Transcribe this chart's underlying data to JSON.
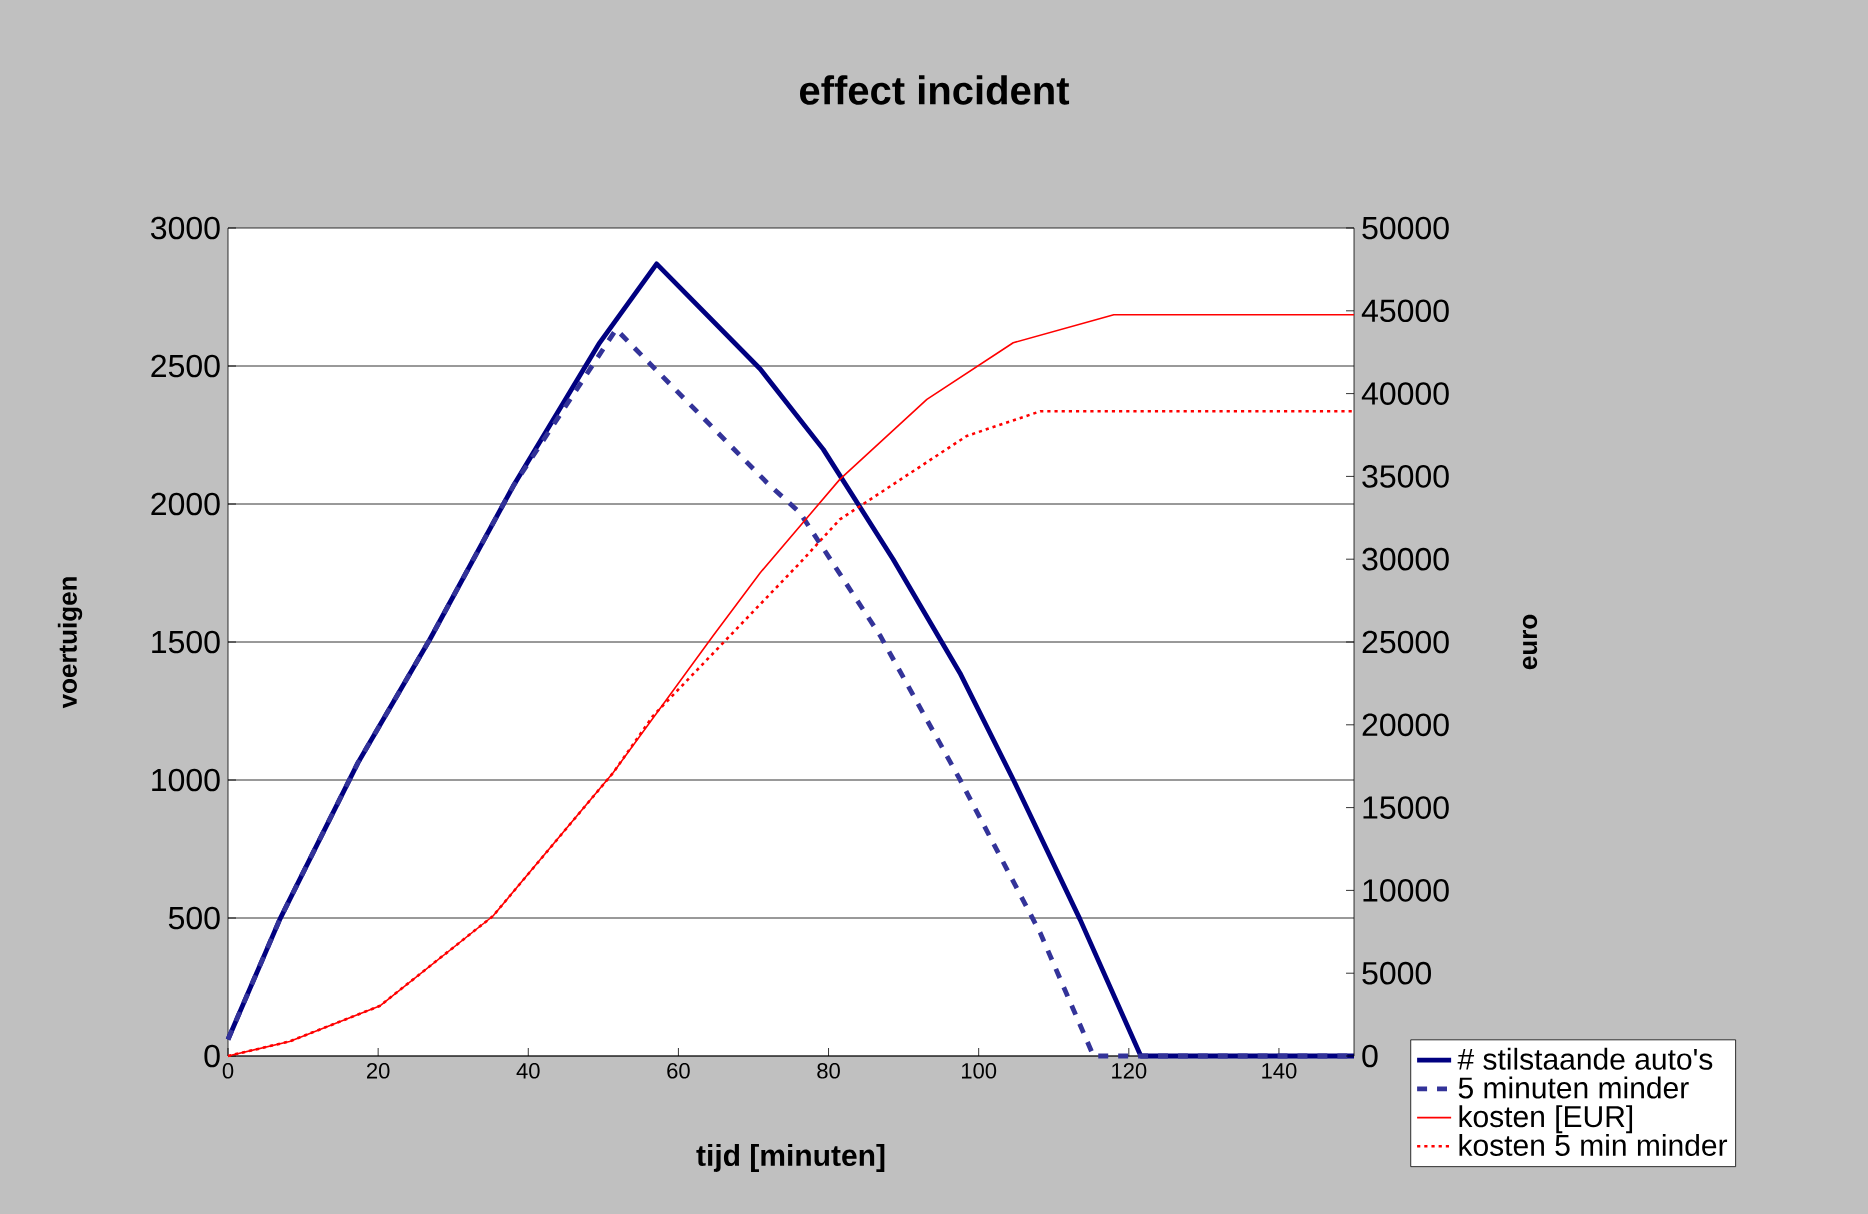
{
  "chart_data": {
    "type": "line",
    "title": "effect incident",
    "xlabel": "tijd [minuten]",
    "ylabel": "voertuigen",
    "y2label": "euro",
    "xlim": [
      0,
      150
    ],
    "xticks": [
      0,
      20,
      40,
      60,
      80,
      100,
      120,
      140
    ],
    "ylim": [
      0,
      3000
    ],
    "yticks": [
      0,
      500,
      1000,
      1500,
      2000,
      2500,
      3000
    ],
    "y2lim": [
      0,
      50000
    ],
    "y2ticks": [
      0,
      5000,
      10000,
      15000,
      20000,
      25000,
      30000,
      35000,
      40000,
      45000,
      50000
    ],
    "grid": "y",
    "legend": "bottom right",
    "marker": "none",
    "series": [
      {
        "name": "# stilstaande auto's",
        "color": "#000080",
        "line_style": "solid",
        "x": [
          0,
          6.9,
          17.3,
          26.9,
          38,
          49.5,
          57.1,
          70.9,
          79.3,
          88.6,
          97.5,
          104.6,
          113.5,
          121.6,
          150
        ],
        "values": [
          60,
          495,
          1062,
          1510,
          2065,
          2584,
          2870,
          2489,
          2198,
          1800,
          1388,
          1002,
          495,
          0,
          0
        ]
      },
      {
        "name": "5 minuten minder",
        "color": "#333399",
        "line_style": "dashed",
        "x": [
          0,
          6.9,
          17.3,
          26.9,
          38,
          51.7,
          71.8,
          76.2,
          86.9,
          97.5,
          108.2,
          115.3,
          150
        ],
        "values": [
          60,
          495,
          1062,
          1510,
          2065,
          2633,
          2077,
          1968,
          1522,
          1002,
          446,
          0,
          0
        ]
      },
      {
        "name": "kosten [EUR]",
        "color": "#ff0000",
        "line_style": "solid",
        "axis": "y2",
        "x": [
          0,
          8.2,
          20.2,
          35.3,
          51.3,
          64.6,
          70.9,
          81.5,
          93.1,
          104.6,
          118,
          150
        ],
        "values": [
          0,
          880,
          3019,
          8454,
          17100,
          25360,
          29180,
          34820,
          39650,
          43070,
          44760,
          44760
        ]
      },
      {
        "name": "kosten 5 min minder",
        "color": "#ff0000",
        "line_style": "dotted",
        "axis": "y2",
        "x": [
          0,
          8.2,
          20.2,
          35.3,
          51.3,
          56.6,
          76.2,
          81.5,
          98.4,
          108.2,
          150
        ],
        "values": [
          0,
          880,
          3019,
          8454,
          17100,
          20530,
          29780,
          32400,
          37440,
          38930,
          38930
        ]
      }
    ]
  }
}
